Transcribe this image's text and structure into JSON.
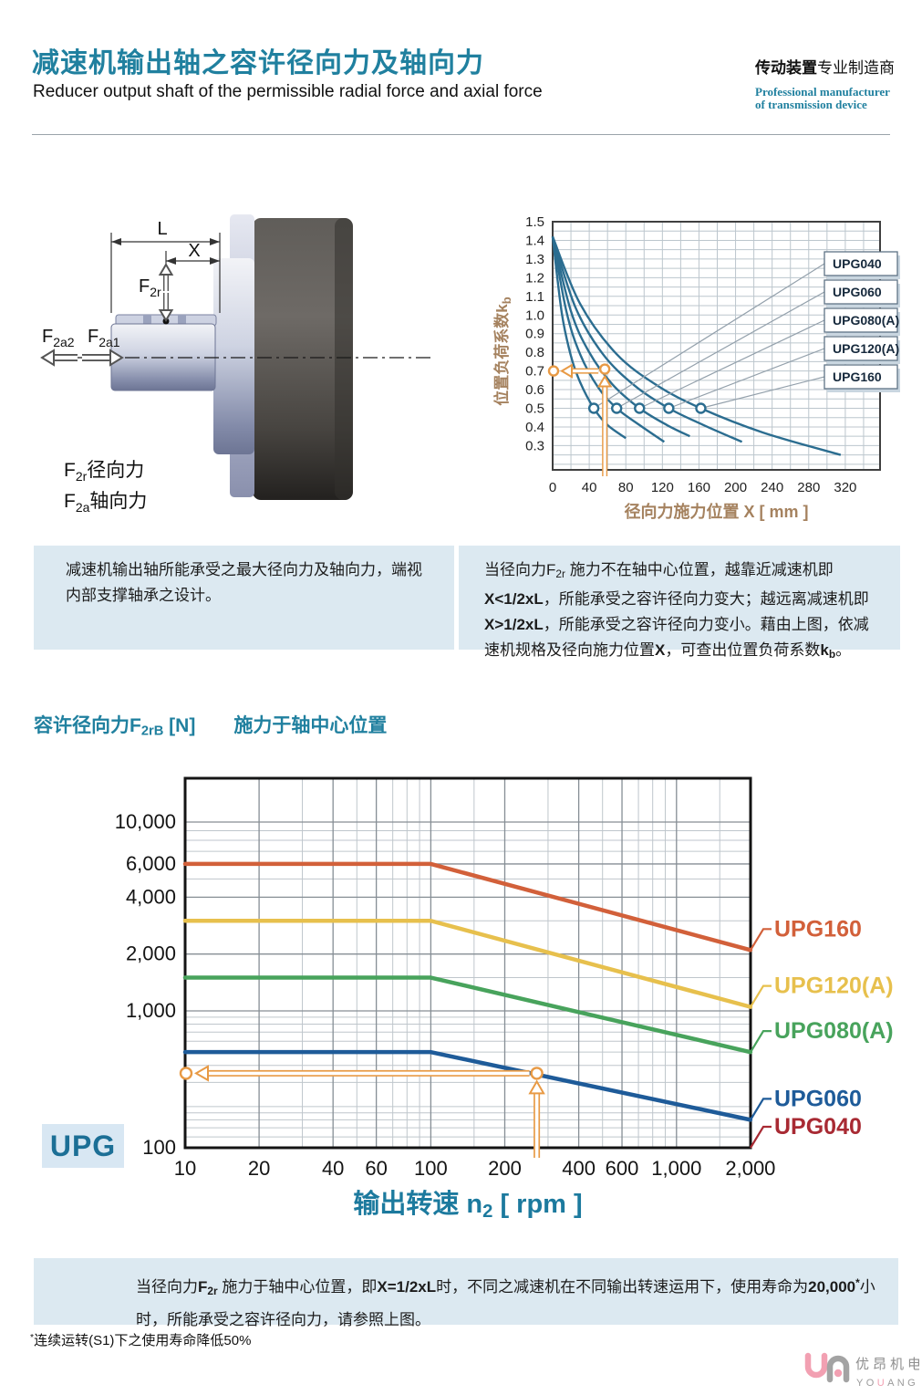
{
  "header": {
    "title_zh": "减速机输出轴之容许径向力及轴向力",
    "title_en": "Reducer output shaft of the permissible radial force and axial force",
    "brand_bold": "传动装置",
    "brand_rest": "专业制造商",
    "brand_en1": "Professional manufacturer",
    "brand_en2": "of transmission device"
  },
  "diagram": {
    "dim_l": "L",
    "dim_x": "X",
    "f2r_base": "F",
    "f2r_sub": "2r",
    "f2a2_base": "F",
    "f2a2_sub": "2a2",
    "f2a1_base": "F",
    "f2a1_sub": "2a1",
    "legend_radial_base": "F",
    "legend_radial_sub": "2r",
    "legend_radial_text": "径向力",
    "legend_axial_base": "F",
    "legend_axial_sub": "2a",
    "legend_axial_text": "轴向力"
  },
  "section_title": [
    {
      "t": "容许径向力"
    },
    {
      "t": "F"
    },
    {
      "t": "2rB",
      "sub": true
    },
    {
      "t": " [N]"
    },
    {
      "t": "　　施力于轴中心位置"
    }
  ],
  "notes": {
    "left_box": [
      {
        "t": "减速机输出轴所能承受之最大径向力及轴向力，端视内部支撑轴承之设计。"
      }
    ],
    "right_box": [
      {
        "t": "当径向力F"
      },
      {
        "t": "2r",
        "sub": true
      },
      {
        "t": " 施力不在轴中心位置，越靠近减速机即"
      },
      {
        "t": "X<1/2xL",
        "b": true
      },
      {
        "t": "，所能承受之容许径向力变大；越远离减速机即"
      },
      {
        "t": "X>1/2xL",
        "b": true
      },
      {
        "t": "，所能承受之容许径向力变小。藉由上图，依减速机规格及径向施力位置"
      },
      {
        "t": "X",
        "b": true
      },
      {
        "t": "，可查出位置负荷系数"
      },
      {
        "t": "k",
        "b": true
      },
      {
        "t": "b",
        "b": true,
        "sub": true
      },
      {
        "t": "。"
      }
    ],
    "bottom_box": [
      {
        "t": "当径向力"
      },
      {
        "t": "F",
        "b": true
      },
      {
        "t": "2r",
        "b": true,
        "sub": true
      },
      {
        "t": " 施力于轴中心位置，即"
      },
      {
        "t": "X=1/2xL",
        "b": true
      },
      {
        "t": "时，不同之减速机在不同输出转速运用下，使用寿命为"
      },
      {
        "t": "20,000",
        "b": true
      },
      {
        "t": "*",
        "b": true,
        "sup": true
      },
      {
        "t": "小时，所能承受之容许径向力，请参照上图。"
      }
    ],
    "footnote": [
      {
        "t": "*",
        "sup": true
      },
      {
        "t": "连续运转(S1)下之使用寿命降低50%"
      }
    ]
  },
  "logo": {
    "zh": "优昂机电",
    "en_1": "YO",
    "en_2": "U",
    "en_3": "ANG"
  },
  "chart_data": [
    {
      "type": "line",
      "title": "位置负荷系数图",
      "xlabel": "径向力施力位置 X [ mm ]",
      "ylabel": "位置负荷系数k",
      "ylabel_sub": "b",
      "xlim": [
        0,
        358
      ],
      "ylim": [
        0.17,
        1.5
      ],
      "xticks": [
        0,
        40,
        80,
        120,
        160,
        200,
        240,
        280,
        320
      ],
      "yticks": [
        1.5,
        1.4,
        1.3,
        1.2,
        1.1,
        1.0,
        0.9,
        0.8,
        0.7,
        0.6,
        0.5,
        0.4,
        0.3
      ],
      "grid": {
        "x_step": 20,
        "y_step": 0.05
      },
      "line_color": "#2b6d90",
      "series": [
        {
          "name": "UPG040",
          "points": [
            [
              0,
              1.42
            ],
            [
              10,
              1.01
            ],
            [
              20,
              0.78
            ],
            [
              30,
              0.64
            ],
            [
              45,
              0.5
            ],
            [
              60,
              0.41
            ],
            [
              80,
              0.34
            ]
          ],
          "marker": [
            45,
            0.5
          ]
        },
        {
          "name": "UPG060",
          "points": [
            [
              0,
              1.42
            ],
            [
              15,
              1.02
            ],
            [
              30,
              0.79
            ],
            [
              50,
              0.61
            ],
            [
              70,
              0.5
            ],
            [
              95,
              0.41
            ],
            [
              122,
              0.32
            ]
          ],
          "marker": [
            70,
            0.5
          ]
        },
        {
          "name": "UPG080(A)",
          "points": [
            [
              0,
              1.42
            ],
            [
              20,
              1.02
            ],
            [
              40,
              0.8
            ],
            [
              65,
              0.63
            ],
            [
              95,
              0.5
            ],
            [
              125,
              0.41
            ],
            [
              150,
              0.35
            ]
          ],
          "marker": [
            95,
            0.5
          ]
        },
        {
          "name": "UPG120(A)",
          "points": [
            [
              0,
              1.42
            ],
            [
              25,
              1.04
            ],
            [
              55,
              0.79
            ],
            [
              90,
              0.62
            ],
            [
              127,
              0.5
            ],
            [
              165,
              0.41
            ],
            [
              207,
              0.32
            ]
          ],
          "marker": [
            127,
            0.5
          ]
        },
        {
          "name": "UPG160",
          "points": [
            [
              0,
              1.42
            ],
            [
              30,
              1.06
            ],
            [
              70,
              0.79
            ],
            [
              115,
              0.62
            ],
            [
              162,
              0.5
            ],
            [
              230,
              0.37
            ],
            [
              315,
              0.25
            ]
          ],
          "marker": [
            162,
            0.5
          ]
        }
      ],
      "legend": [
        "UPG040",
        "UPG060",
        "UPG080(A)",
        "UPG120(A)",
        "UPG160"
      ],
      "legend_position": "right-overlay",
      "annotation": {
        "x": 57,
        "y": 0.71,
        "axis_y": 0.7,
        "color": "#e89a45"
      }
    },
    {
      "type": "line",
      "title": "容许径向力 F2rB [N]",
      "xlabel_pre": "输出转速 n",
      "xlabel_sub": "2",
      "xlabel_post": " [ rpm ]",
      "badge": "UPG",
      "log_x": true,
      "log_y": true,
      "xlim": [
        10,
        2000
      ],
      "ylim": [
        100,
        17000
      ],
      "xticks_labeled": [
        "10",
        "20",
        "40",
        "60",
        "100",
        "200",
        "400",
        "600",
        "1,000",
        "2,000"
      ],
      "xticks_values": [
        10,
        20,
        40,
        60,
        100,
        200,
        400,
        600,
        1000,
        2000
      ],
      "x_minor": [
        30,
        50,
        70,
        80,
        90,
        150,
        300,
        500,
        700,
        800,
        900,
        1500
      ],
      "yticks_labeled": [
        "10,000",
        "6,000",
        "4,000",
        "2,000",
        "1,000",
        "100"
      ],
      "yticks_values": [
        10000,
        6000,
        4000,
        2000,
        1000,
        100
      ],
      "y_minor": [
        9000,
        8000,
        7000,
        5000,
        3000,
        1500,
        900,
        800,
        700,
        600,
        500,
        400,
        300,
        200,
        180,
        160,
        140,
        120
      ],
      "series": [
        {
          "name": "UPG160",
          "color": "#d2603a",
          "points": [
            [
              10,
              6000
            ],
            [
              100,
              6000
            ],
            [
              2000,
              2100
            ]
          ]
        },
        {
          "name": "UPG120(A)",
          "color": "#e7c04d",
          "points": [
            [
              10,
              3000
            ],
            [
              100,
              3000
            ],
            [
              2000,
              1050
            ]
          ]
        },
        {
          "name": "UPG080(A)",
          "color": "#48a35c",
          "points": [
            [
              10,
              1500
            ],
            [
              100,
              1500
            ],
            [
              2000,
              500
            ]
          ]
        },
        {
          "name": "UPG060",
          "color": "#1e5b99",
          "points": [
            [
              10,
              500
            ],
            [
              100,
              500
            ],
            [
              2000,
              160
            ]
          ]
        },
        {
          "name": "UPG040",
          "color": "#a82a33",
          "points": [],
          "label_only": true
        }
      ],
      "annotation": {
        "x": 270,
        "y": 350,
        "color": "#e89a45"
      }
    }
  ]
}
